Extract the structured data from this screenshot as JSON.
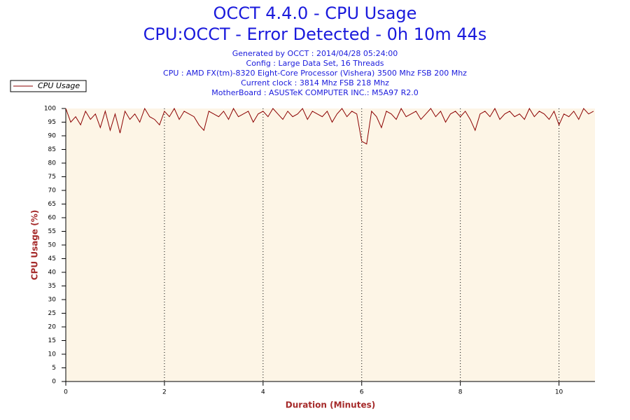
{
  "chart_data": {
    "type": "line",
    "title": "OCCT 4.4.0 - CPU Usage",
    "subtitle": "CPU:OCCT - Error Detected - 0h 10m 44s",
    "info": [
      "Generated by OCCT : 2014/04/28 05:24:00",
      "Config : Large Data Set, 16 Threads",
      "CPU : AMD FX(tm)-8320 Eight-Core Processor (Vishera) 3500 Mhz FSB 200 Mhz",
      "Current clock : 3814 Mhz FSB 218 Mhz",
      "MotherBoard : ASUSTeK COMPUTER INC.: M5A97 R2.0"
    ],
    "x_label": "Duration (Minutes)",
    "y_label": "CPU Usage (%)",
    "background": "#fdf5e6",
    "xgrid": true,
    "x": [
      0,
      0.1,
      0.2,
      0.3,
      0.4,
      0.5,
      0.6,
      0.7,
      0.8,
      0.9,
      1,
      1.1,
      1.2,
      1.3,
      1.4,
      1.5,
      1.6,
      1.7,
      1.8,
      1.9,
      2,
      2.1,
      2.2,
      2.3,
      2.4,
      2.5,
      2.6,
      2.7,
      2.8,
      2.9,
      3,
      3.1,
      3.2,
      3.3,
      3.4,
      3.5,
      3.6,
      3.7,
      3.8,
      3.9,
      4,
      4.1,
      4.2,
      4.3,
      4.4,
      4.5,
      4.6,
      4.7,
      4.8,
      4.9,
      5,
      5.1,
      5.2,
      5.3,
      5.4,
      5.5,
      5.6,
      5.7,
      5.8,
      5.9,
      6,
      6.1,
      6.2,
      6.3,
      6.4,
      6.5,
      6.6,
      6.7,
      6.8,
      6.9,
      7,
      7.1,
      7.2,
      7.3,
      7.4,
      7.5,
      7.6,
      7.7,
      7.8,
      7.9,
      8,
      8.1,
      8.2,
      8.3,
      8.4,
      8.5,
      8.6,
      8.7,
      8.8,
      8.9,
      9,
      9.1,
      9.2,
      9.3,
      9.4,
      9.5,
      9.6,
      9.7,
      9.8,
      9.9,
      10,
      10.1,
      10.2,
      10.3,
      10.4,
      10.5,
      10.6,
      10.7
    ],
    "series": [
      {
        "name": "CPU Usage",
        "color": "#8b0000",
        "values": [
          100,
          95,
          97,
          94,
          99,
          96,
          98,
          93,
          99,
          92,
          98,
          91,
          99,
          96,
          98,
          95,
          100,
          97,
          96,
          94,
          99,
          97,
          100,
          96,
          99,
          98,
          97,
          94,
          92,
          99,
          98,
          97,
          99,
          96,
          100,
          97,
          98,
          99,
          95,
          98,
          99,
          97,
          100,
          98,
          96,
          99,
          97,
          98,
          100,
          96,
          99,
          98,
          97,
          99,
          95,
          98,
          100,
          97,
          99,
          98,
          88,
          87,
          99,
          97,
          93,
          99,
          98,
          96,
          100,
          97,
          98,
          99,
          96,
          98,
          100,
          97,
          99,
          95,
          98,
          99,
          97,
          99,
          96,
          92,
          98,
          99,
          97,
          100,
          96,
          98,
          99,
          97,
          98,
          96,
          100,
          97,
          99,
          98,
          96,
          99,
          94,
          98,
          97,
          99,
          96,
          100,
          98,
          99
        ]
      }
    ],
    "xlim": [
      0,
      10.73
    ],
    "ylim": [
      0,
      100
    ],
    "xticks": [
      0,
      2,
      4,
      6,
      8,
      10
    ],
    "yticks": [
      0,
      5,
      10,
      15,
      20,
      25,
      30,
      35,
      40,
      45,
      50,
      55,
      60,
      65,
      70,
      75,
      80,
      85,
      90,
      95,
      100
    ]
  }
}
